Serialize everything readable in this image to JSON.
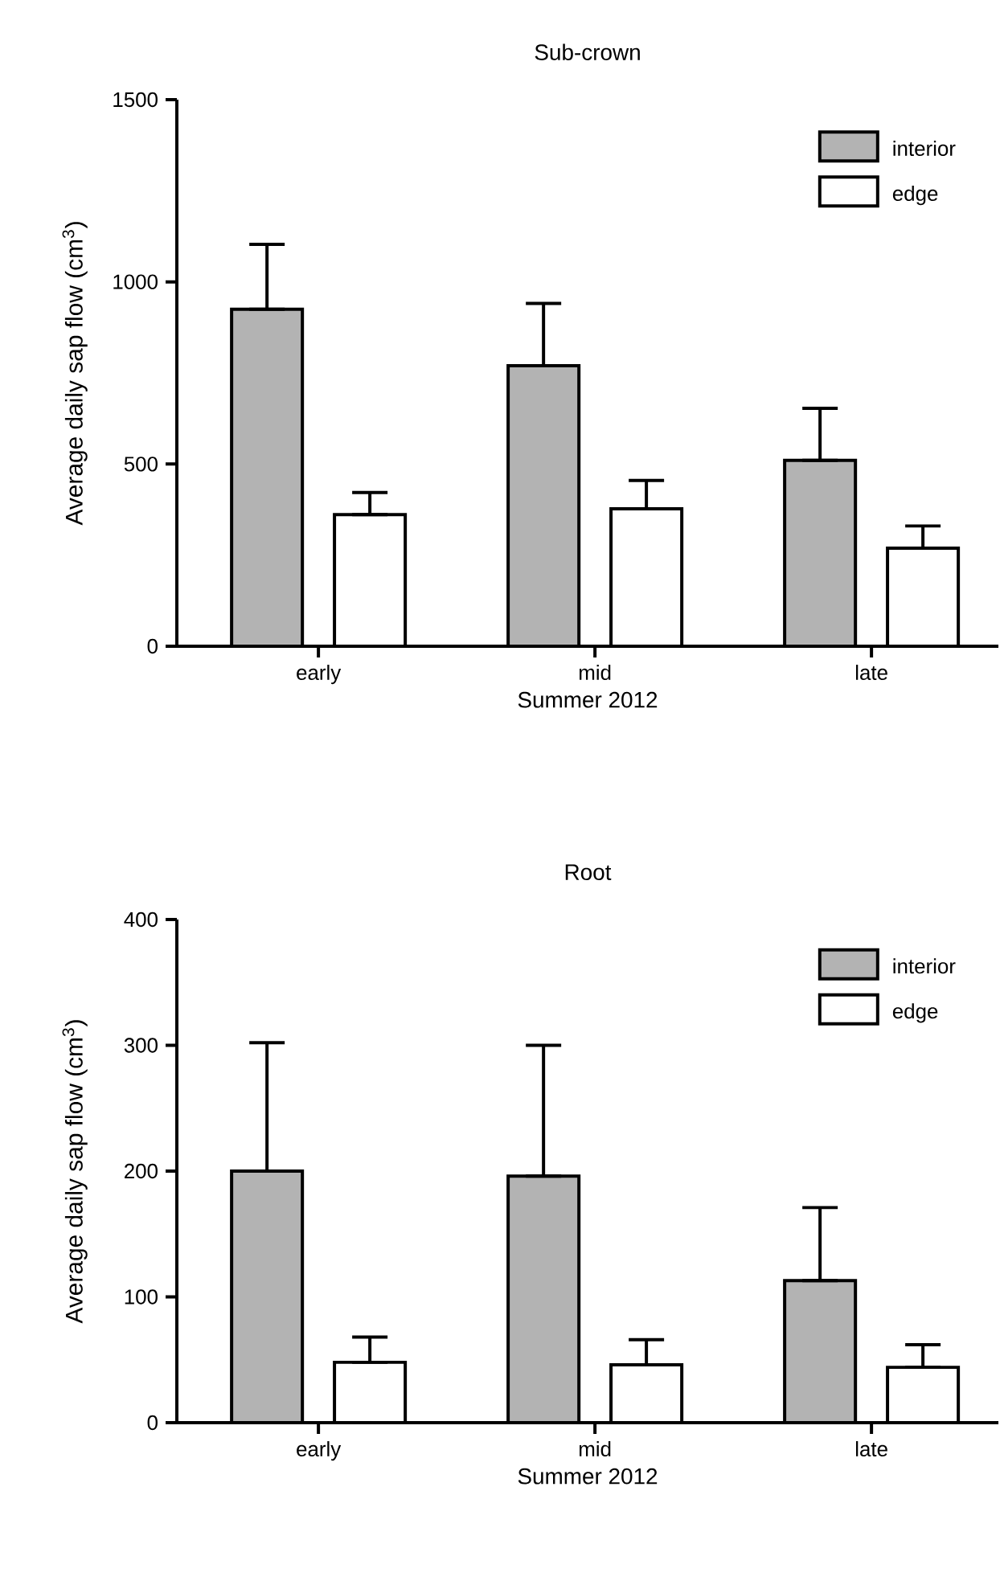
{
  "chart_data": [
    {
      "type": "bar",
      "title": "Sub-crown",
      "xlabel": "Summer 2012",
      "ylabel": "Average daily sap flow (cm$^{3}$)",
      "categories": [
        "early",
        "mid",
        "late"
      ],
      "ylim": [
        0,
        1500
      ],
      "yticks": [
        0,
        500,
        1000,
        1500
      ],
      "legend": "top right",
      "series": [
        {
          "name": "interior",
          "color": "#b3b3b3",
          "values": [
            925,
            770,
            510
          ],
          "errors": [
            [
              925,
              1103
            ],
            [
              770,
              941
            ],
            [
              510,
              653
            ]
          ]
        },
        {
          "name": "edge",
          "color": "#ffffff",
          "values": [
            361,
            377,
            269
          ],
          "errors": [
            [
              361,
              422
            ],
            [
              377,
              455
            ],
            [
              269,
              330
            ]
          ]
        }
      ]
    },
    {
      "type": "bar",
      "title": "Root",
      "xlabel": "Summer 2012",
      "ylabel": "Average daily sap flow (cm$^{3}$)",
      "categories": [
        "early",
        "mid",
        "late"
      ],
      "ylim": [
        0,
        400
      ],
      "yticks": [
        0,
        100,
        200,
        300,
        400
      ],
      "legend": "top right",
      "series": [
        {
          "name": "interior",
          "color": "#b3b3b3",
          "values": [
            200,
            196,
            113
          ],
          "errors": [
            [
              200,
              302
            ],
            [
              196,
              300
            ],
            [
              113,
              171
            ]
          ]
        },
        {
          "name": "edge",
          "color": "#ffffff",
          "values": [
            48,
            46,
            44
          ],
          "errors": [
            [
              48,
              68
            ],
            [
              46,
              66
            ],
            [
              44,
              62
            ]
          ]
        }
      ]
    }
  ]
}
